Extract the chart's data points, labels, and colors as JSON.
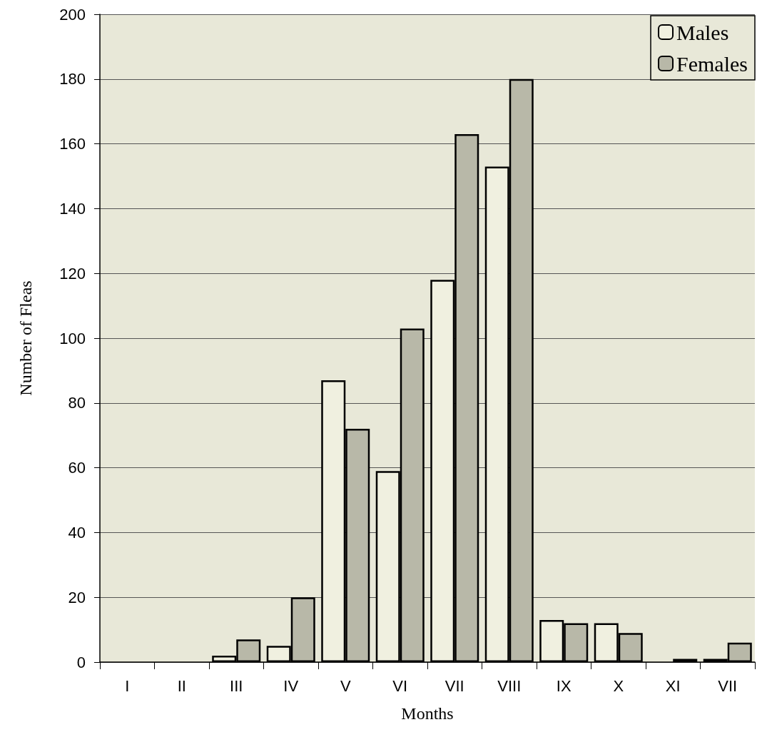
{
  "chart_data": {
    "type": "bar",
    "xlabel": "Months",
    "ylabel": "Number of Fleas",
    "categories": [
      "I",
      "II",
      "III",
      "IV",
      "V",
      "VI",
      "VII",
      "VIII",
      "IX",
      "X",
      "XI",
      "VII"
    ],
    "series": [
      {
        "name": "Males",
        "color": "#f0f0e0",
        "values": [
          0,
          0,
          2,
          5,
          87,
          59,
          118,
          153,
          13,
          12,
          0,
          1
        ]
      },
      {
        "name": "Females",
        "color": "#b8b8a8",
        "values": [
          0,
          0,
          7,
          20,
          72,
          103,
          163,
          180,
          12,
          9,
          1,
          6
        ]
      }
    ],
    "ylim": [
      0,
      200
    ],
    "yticks": [
      0,
      20,
      40,
      60,
      80,
      100,
      120,
      140,
      160,
      180,
      200
    ],
    "grid": "y",
    "legend": "top right"
  }
}
